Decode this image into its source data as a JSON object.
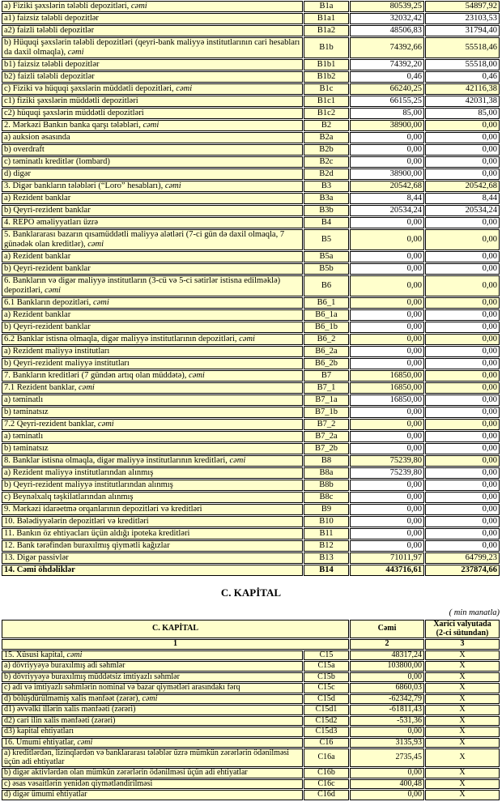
{
  "colors": {
    "cell_highlight": "#FFFFCC",
    "border": "#000000",
    "text": "#000000",
    "page_background": "#FFFFFF"
  },
  "liabilities": {
    "rows": [
      {
        "label": "a)  Fiziki şəxslərin tələbli depozitləri, ",
        "italic": "cəmi",
        "code": "B1a",
        "v1": "80539,25",
        "v2": "54897,92",
        "ind": 1,
        "hl": true
      },
      {
        "label": "a1) faizsiz tələbli depozitlər",
        "code": "B1a1",
        "v1": "32032,42",
        "v2": "23103,53",
        "ind": 2,
        "hl": false
      },
      {
        "label": "a2) faizli tələbli depozitlər",
        "code": "B1a2",
        "v1": "48506,83",
        "v2": "31794,40",
        "ind": 2,
        "hl": false
      },
      {
        "label": "b) Hüquqi şəxslərin tələbli depozitləri (qeyri-bank maliyyə institutlarının cari hesabları da daxil olmaqla), ",
        "italic": "cəmi",
        "code": "B1b",
        "v1": "74392,66",
        "v2": "55518,46",
        "ind": 0,
        "hl": true
      },
      {
        "label": "b1) faizsiz tələbli depozitlər",
        "code": "B1b1",
        "v1": "74392,20",
        "v2": "55518,00",
        "ind": 2,
        "hl": false
      },
      {
        "label": "b2) faizli tələbli depozitlər",
        "code": "B1b2",
        "v1": "0,46",
        "v2": "0,46",
        "ind": 2,
        "hl": false
      },
      {
        "label": "c) Fiziki və hüquqi şəxslərin müddətli depozitləri, ",
        "italic": "cəmi",
        "code": "B1c",
        "v1": "66240,25",
        "v2": "42116,38",
        "ind": 1,
        "hl": true
      },
      {
        "label": "c1) fiziki şəxslərin müddətli depozitləri",
        "code": "B1c1",
        "v1": "66155,25",
        "v2": "42031,38",
        "ind": 2,
        "hl": false
      },
      {
        "label": "c2) hüquqi şəxslərin müddətli depozitləri",
        "code": "B1c2",
        "v1": "85,00",
        "v2": "85,00",
        "ind": 2,
        "hl": false
      },
      {
        "label": "2. Mərkəzi Bankın banka qarşı tələbləri, ",
        "italic": "cəmi",
        "code": "B2",
        "v1": "38900,00",
        "v2": "0,00",
        "ind": 0,
        "hl": true
      },
      {
        "label": "a) auksion əsasında",
        "code": "B2a",
        "v1": "0,00",
        "v2": "0,00",
        "ind": 1,
        "hl": false
      },
      {
        "label": "b) overdraft",
        "code": "B2b",
        "v1": "0,00",
        "v2": "0,00",
        "ind": 1,
        "hl": false
      },
      {
        "label": "c) təminatlı kreditlər (lombard)",
        "code": "B2c",
        "v1": "0,00",
        "v2": "0,00",
        "ind": 1,
        "hl": false
      },
      {
        "label": "d) digər",
        "code": "B2d",
        "v1": "38900,00",
        "v2": "0,00",
        "ind": 1,
        "hl": false
      },
      {
        "label": "3. Digər bankların tələbləri (“Loro” hesabları), ",
        "italic": "cəmi",
        "code": "B3",
        "v1": "20542,68",
        "v2": "20542,68",
        "ind": 0,
        "hl": true
      },
      {
        "label": "a) Rezident banklar",
        "code": "B3a",
        "v1": "8,44",
        "v2": "8,44",
        "ind": 1,
        "hl": false
      },
      {
        "label": "b) Qeyri-rezident banklar",
        "code": "B3b",
        "v1": "20534,24",
        "v2": "20534,24",
        "ind": 1,
        "hl": false
      },
      {
        "label": "4. REPO əməliyyatları  üzrə",
        "code": "B4",
        "v1": "0,00",
        "v2": "0,00",
        "ind": 0,
        "hl": false
      },
      {
        "label": "5. Banklararası bazarın qısamüddətli maliyyə alətləri (7-ci gün də daxil olmaqla, 7 günədək olan kreditlər), ",
        "italic": "cəmi",
        "code": "B5",
        "v1": "0,00",
        "v2": "0,00",
        "ind": 0,
        "hl": true
      },
      {
        "label": "a) Rezident banklar",
        "code": "B5a",
        "v1": "0,00",
        "v2": "0,00",
        "ind": 1,
        "hl": false
      },
      {
        "label": "b) Qeyri-rezident banklar",
        "code": "B5b",
        "v1": "0,00",
        "v2": "0,00",
        "ind": 1,
        "hl": false
      },
      {
        "label": "6. Bankların və digər maliyyə institutların (3-cü və 5-ci sətirlər istisna edilməklə) depozitləri, ",
        "italic": "cəmi",
        "code": "B6",
        "v1": "0,00",
        "v2": "0,00",
        "ind": 0,
        "hl": true
      },
      {
        "label": "6.1  Bankların depozitləri, ",
        "italic": "cəmi",
        "code": "B6_1",
        "v1": "0,00",
        "v2": "0,00",
        "ind": 0,
        "hl": true
      },
      {
        "label": "a) Rezident banklar",
        "code": "B6_1a",
        "v1": "0,00",
        "v2": "0,00",
        "ind": 1,
        "hl": false
      },
      {
        "label": "b) Qeyri-rezident banklar",
        "code": "B6_1b",
        "v1": "0,00",
        "v2": "0,00",
        "ind": 1,
        "hl": false
      },
      {
        "label": "6.2 Banklar istisna olmaqla, digər maliyyə institutlarının depozitləri, ",
        "italic": "cəmi",
        "code": "B6_2",
        "v1": "0,00",
        "v2": "0,00",
        "ind": 0,
        "hl": true
      },
      {
        "label": "a) Rezident maliyyə institutları",
        "code": "B6_2a",
        "v1": "0,00",
        "v2": "0,00",
        "ind": 1,
        "hl": false
      },
      {
        "label": "b) Qeyri-rezident maliyyə institutları",
        "code": "B6_2b",
        "v1": "0,00",
        "v2": "0,00",
        "ind": 1,
        "hl": false
      },
      {
        "label": "7. Bankların kreditləri (7 gündən artıq olan müddətə), ",
        "italic": "cəmi",
        "code": "B7",
        "v1": "16850,00",
        "v2": "0,00",
        "ind": 0,
        "hl": true
      },
      {
        "label": "7.1 Rezident banklar, ",
        "italic": "cəmi",
        "code": "B7_1",
        "v1": "16850,00",
        "v2": "0,00",
        "ind": 0,
        "hl": true
      },
      {
        "label": "a) təminatlı",
        "code": "B7_1a",
        "v1": "16850,00",
        "v2": "0,00",
        "ind": 1,
        "hl": false
      },
      {
        "label": "b) təminatsız",
        "code": "B7_1b",
        "v1": "0,00",
        "v2": "0,00",
        "ind": 1,
        "hl": false
      },
      {
        "label": "7.2 Qeyri-rezident banklar, ",
        "italic": "cəmi",
        "code": "B7_2",
        "v1": "0,00",
        "v2": "0,00",
        "ind": 0,
        "hl": true
      },
      {
        "label": "a) təminatlı",
        "code": "B7_2a",
        "v1": "0,00",
        "v2": "0,00",
        "ind": 1,
        "hl": false
      },
      {
        "label": "b) təminatsız",
        "code": "B7_2b",
        "v1": "0,00",
        "v2": "0,00",
        "ind": 1,
        "hl": false
      },
      {
        "label": "8. Banklar istisna olmaqla, digər maliyyə institutlarının kreditləri, ",
        "italic": "cəmi",
        "code": "B8",
        "v1": "75239,80",
        "v2": "0,00",
        "ind": 0,
        "hl": true
      },
      {
        "label": "a) Rezident maliyyə institutlarından alınmış",
        "code": "B8a",
        "v1": "75239,80",
        "v2": "0,00",
        "ind": 1,
        "hl": false
      },
      {
        "label": "b) Qeyri-rezident maliyyə institutlarından alınmış",
        "code": "B8b",
        "v1": "0,00",
        "v2": "0,00",
        "ind": 1,
        "hl": false
      },
      {
        "label": "c) Beynəlxalq təşkilatlarından alınmış",
        "code": "B8c",
        "v1": "0,00",
        "v2": "0,00",
        "ind": 1,
        "hl": false
      },
      {
        "label": "9. Mərkəzi idarəetmə orqanlarının depozitləri və kreditləri",
        "code": "B9",
        "v1": "0,00",
        "v2": "0,00",
        "ind": 0,
        "hl": false
      },
      {
        "label": "10. Bələdiyyələrin depozitləri və kreditləri",
        "code": "B10",
        "v1": "0,00",
        "v2": "0,00",
        "ind": 0,
        "hl": false
      },
      {
        "label": "11. Bankın öz ehtiyacları üçün aldığı ipoteka kreditləri",
        "code": "B11",
        "v1": "0,00",
        "v2": "0,00",
        "ind": 0,
        "hl": false
      },
      {
        "label": "12. Bank tərəfindən buraxılmış qiymətli kağızlar",
        "code": "B12",
        "v1": "0,00",
        "v2": "0,00",
        "ind": 0,
        "hl": false
      },
      {
        "label": "13. Digər passivlər",
        "code": "B13",
        "v1": "71011,97",
        "v2": "64799,23",
        "ind": 0,
        "hl": true
      },
      {
        "label": "14. Cəmi öhdəliklər",
        "code": "B14",
        "v1": "443716,61",
        "v2": "237874,66",
        "ind": 0,
        "hl": true,
        "bold": true
      }
    ]
  },
  "capital": {
    "title": "C. KAPİTAL",
    "unit_note": "( min manatla)",
    "header": {
      "col1": "C. KAPİTAL",
      "col2": "Cəmi",
      "col3_line1": "Xarici valyutada",
      "col3_line2": "(2-ci sütundan)"
    },
    "index_row": [
      "1",
      "2",
      "3"
    ],
    "rows": [
      {
        "label": "15. Xüsusi kapital, ",
        "italic": "cəmi",
        "code": "C15",
        "v1": "48317,24",
        "x": "X",
        "ind": 0
      },
      {
        "label": "a) dövriyyəyə buraxılmış adi səhmlər",
        "code": "C15a",
        "v1": "103800,00",
        "x": "X",
        "ind": 1
      },
      {
        "label": "b) dövriyyəyə buraxılmış müddətsiz imtiyazlı səhmlər",
        "code": "C15b",
        "v1": "0,00",
        "x": "X",
        "ind": 1
      },
      {
        "label": "c) adi və imtiyazlı səhmlərin nominal və bazar qiymətləri arasındakı fərq",
        "code": "C15c",
        "v1": "6860,03",
        "x": "X",
        "ind": 1
      },
      {
        "label": "d) bölüşdürülməmiş xalis mənfəət (zərər), ",
        "italic": "cəmi",
        "code": "C15d",
        "v1": "-62342,79",
        "x": "X",
        "ind": 1
      },
      {
        "label": "d1) əvvəlki illərin xalis mənfəəti (zərəri)",
        "code": "C15d1",
        "v1": "-61811,43",
        "x": "X",
        "ind": 3
      },
      {
        "label": "d2) cari ilin xalis mənfəəti (zərəri)",
        "code": "C15d2",
        "v1": "-531,36",
        "x": "X",
        "ind": 3
      },
      {
        "label": "d3) kapital ehtiyatları",
        "code": "C15d3",
        "v1": "0,00",
        "x": "X",
        "ind": 3
      },
      {
        "label": "16. Ümumi ehtiyatlar, ",
        "italic": "cəmi",
        "code": "C16",
        "v1": "3135,93",
        "x": "X",
        "ind": 0
      },
      {
        "label": "a) kreditlərdən, lizinqlərdən və banklararası  tələblər üzrə mümkün zərərlərin ödənilməsi üçün adi ehtiyatlar",
        "code": "C16a",
        "v1": "2735,45",
        "x": "X",
        "ind": 1
      },
      {
        "label": "b) digər aktivlərdən olan mümkün zərərlərin ödənilməsi üçün adi ehtiyatlar",
        "code": "C16b",
        "v1": "0,00",
        "x": "X",
        "ind": 1
      },
      {
        "label": "c) əsas vəsaitlərin yenidən qiymətləndirilməsi",
        "code": "C16c",
        "v1": "400,48",
        "x": "X",
        "ind": 1
      },
      {
        "label": "d) digər ümumi ehtiyatlar",
        "code": "C16d",
        "v1": "0,00",
        "x": "X",
        "ind": 1
      }
    ]
  }
}
